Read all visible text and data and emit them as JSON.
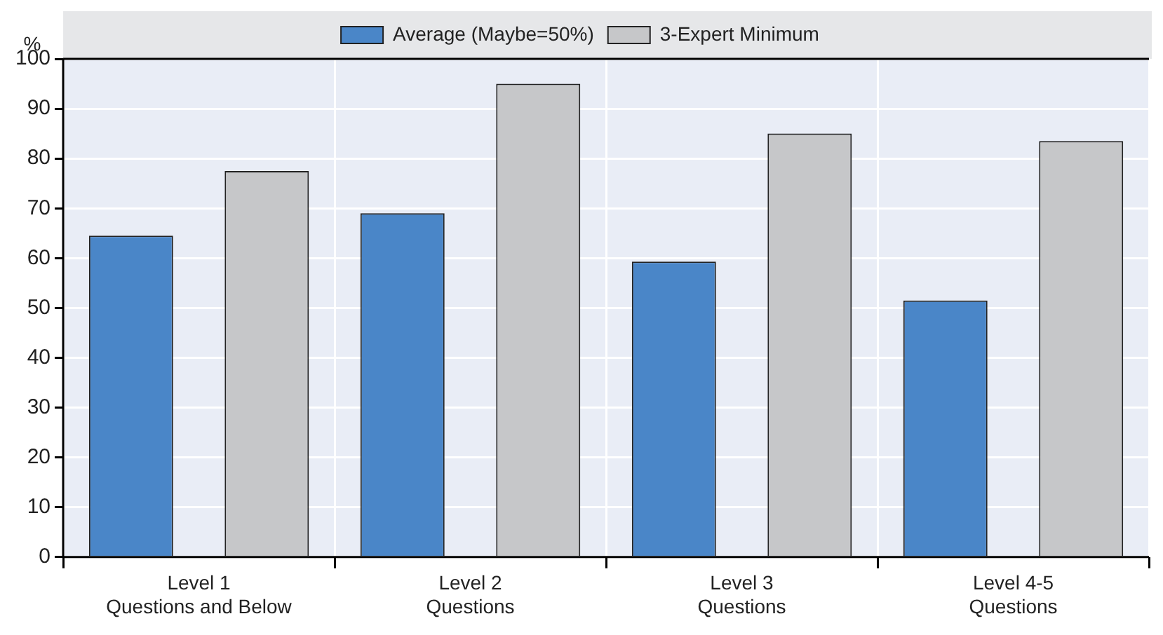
{
  "chart_data": {
    "type": "bar",
    "ylabel": "%",
    "categories": [
      "Level 1\nQuestions and Below",
      "Level 2\nQuestions",
      "Level 3\nQuestions",
      "Level 4-5\nQuestions"
    ],
    "series": [
      {
        "name": "Average (Maybe=50%)",
        "color": "#4a86c8",
        "values": [
          64.5,
          69,
          59.3,
          51.5
        ]
      },
      {
        "name": "3-Expert Minimum",
        "color": "#c6c7c9",
        "values": [
          77.5,
          95,
          85,
          83.5
        ]
      }
    ],
    "ylim": [
      0,
      100
    ],
    "yticks": [
      0,
      10,
      20,
      30,
      40,
      50,
      60,
      70,
      80,
      90,
      100
    ],
    "grid": true,
    "legend": "top"
  }
}
